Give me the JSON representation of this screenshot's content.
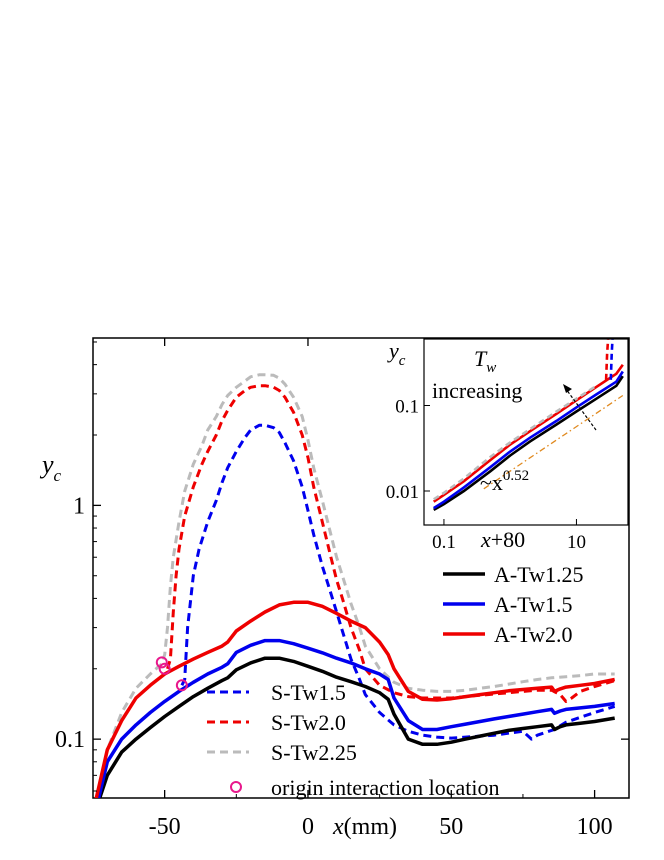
{
  "chart_data": [
    {
      "type": "line",
      "role": "main",
      "xlabel": "x(mm)",
      "ylabel": "y",
      "ylabel_sub": "c",
      "xlim": [
        -75,
        112
      ],
      "ylim": [
        0.056,
        5.2
      ],
      "yscale": "log",
      "grid": false,
      "legend_position": "right / bottom-left",
      "x_ticks": [
        {
          "value": -50,
          "label": "-50"
        },
        {
          "value": 0,
          "label": "0"
        },
        {
          "value": 50,
          "label": "50"
        },
        {
          "value": 100,
          "label": "100"
        }
      ],
      "y_ticks": [
        {
          "value": 0.1,
          "label": "0.1"
        },
        {
          "value": 1,
          "label": "1"
        }
      ],
      "series": [
        {
          "name": "A-Tw1.25",
          "color": "#000000",
          "dash": "solid",
          "x": [
            -74,
            -70,
            -65,
            -60,
            -55,
            -50,
            -45,
            -40,
            -35,
            -30,
            -28,
            -25,
            -20,
            -15,
            -10,
            -5,
            0,
            5,
            10,
            15,
            20,
            25,
            28,
            30,
            35,
            40,
            45,
            50,
            55,
            60,
            65,
            70,
            75,
            80,
            85,
            86,
            88,
            90,
            95,
            100,
            107
          ],
          "y": [
            0.05,
            0.07,
            0.088,
            0.1,
            0.112,
            0.125,
            0.138,
            0.152,
            0.165,
            0.178,
            0.183,
            0.198,
            0.212,
            0.222,
            0.222,
            0.215,
            0.205,
            0.195,
            0.184,
            0.176,
            0.168,
            0.158,
            0.148,
            0.128,
            0.1,
            0.095,
            0.095,
            0.097,
            0.1,
            0.103,
            0.106,
            0.109,
            0.111,
            0.113,
            0.115,
            0.11,
            0.113,
            0.115,
            0.117,
            0.119,
            0.123
          ]
        },
        {
          "name": "A-Tw1.5",
          "color": "#0000ee",
          "dash": "solid",
          "x": [
            -74,
            -70,
            -65,
            -60,
            -55,
            -50,
            -45,
            -40,
            -35,
            -30,
            -28,
            -25,
            -20,
            -15,
            -10,
            -5,
            0,
            5,
            10,
            15,
            20,
            25,
            28,
            30,
            35,
            40,
            45,
            50,
            55,
            60,
            65,
            70,
            75,
            80,
            85,
            86,
            88,
            90,
            95,
            100,
            107
          ],
          "y": [
            0.05,
            0.08,
            0.1,
            0.115,
            0.13,
            0.145,
            0.16,
            0.175,
            0.19,
            0.203,
            0.21,
            0.235,
            0.252,
            0.264,
            0.264,
            0.256,
            0.245,
            0.234,
            0.222,
            0.212,
            0.2,
            0.19,
            0.18,
            0.15,
            0.12,
            0.11,
            0.11,
            0.113,
            0.116,
            0.119,
            0.122,
            0.125,
            0.128,
            0.131,
            0.134,
            0.129,
            0.132,
            0.134,
            0.136,
            0.138,
            0.142
          ]
        },
        {
          "name": "A-Tw2.0",
          "color": "#ee0000",
          "dash": "solid",
          "x": [
            -74,
            -70,
            -65,
            -60,
            -55,
            -50,
            -45,
            -40,
            -35,
            -30,
            -28,
            -25,
            -20,
            -15,
            -10,
            -5,
            0,
            5,
            10,
            15,
            20,
            25,
            28,
            30,
            35,
            40,
            45,
            50,
            55,
            60,
            65,
            70,
            75,
            80,
            85,
            86,
            88,
            90,
            95,
            100,
            107
          ],
          "y": [
            0.055,
            0.09,
            0.12,
            0.15,
            0.17,
            0.19,
            0.205,
            0.22,
            0.235,
            0.25,
            0.26,
            0.29,
            0.32,
            0.35,
            0.375,
            0.385,
            0.385,
            0.37,
            0.345,
            0.32,
            0.3,
            0.26,
            0.23,
            0.2,
            0.16,
            0.148,
            0.147,
            0.149,
            0.152,
            0.155,
            0.158,
            0.161,
            0.163,
            0.165,
            0.167,
            0.16,
            0.164,
            0.167,
            0.17,
            0.173,
            0.18
          ]
        },
        {
          "name": "S-Tw1.5",
          "color": "#0000ee",
          "dash": "dashed",
          "x": [
            -44,
            -43,
            -42,
            -40,
            -38,
            -35,
            -32,
            -30,
            -28,
            -25,
            -22,
            -20,
            -17,
            -15,
            -12,
            -10,
            -8,
            -5,
            -2,
            0,
            2,
            5,
            8,
            10,
            12,
            15,
            18,
            20,
            25,
            30,
            35,
            40,
            45,
            50,
            55,
            60,
            65,
            70,
            75,
            78,
            80,
            84,
            86,
            88,
            90,
            95,
            100,
            107
          ],
          "y": [
            0.17,
            0.18,
            0.3,
            0.5,
            0.65,
            0.85,
            1.05,
            1.25,
            1.45,
            1.7,
            1.95,
            2.1,
            2.2,
            2.2,
            2.15,
            2.05,
            1.85,
            1.55,
            1.2,
            0.95,
            0.75,
            0.55,
            0.42,
            0.35,
            0.29,
            0.22,
            0.18,
            0.155,
            0.13,
            0.115,
            0.108,
            0.104,
            0.102,
            0.101,
            0.102,
            0.103,
            0.104,
            0.106,
            0.108,
            0.1,
            0.104,
            0.108,
            0.11,
            0.114,
            0.118,
            0.124,
            0.13,
            0.138
          ]
        },
        {
          "name": "S-Tw2.0",
          "color": "#ee0000",
          "dash": "dashed",
          "x": [
            -49,
            -48,
            -47,
            -46,
            -45,
            -43,
            -40,
            -37,
            -35,
            -32,
            -30,
            -28,
            -25,
            -22,
            -20,
            -17,
            -15,
            -12,
            -10,
            -8,
            -5,
            -2,
            0,
            2,
            5,
            8,
            10,
            12,
            15,
            18,
            20,
            25,
            30,
            35,
            40,
            45,
            50,
            55,
            60,
            65,
            70,
            75,
            80,
            85,
            88,
            90,
            92,
            95,
            100,
            107
          ],
          "y": [
            0.2,
            0.22,
            0.35,
            0.5,
            0.65,
            0.9,
            1.2,
            1.5,
            1.7,
            2.0,
            2.3,
            2.55,
            2.9,
            3.1,
            3.2,
            3.25,
            3.25,
            3.2,
            3.1,
            2.9,
            2.5,
            2.0,
            1.6,
            1.2,
            0.85,
            0.6,
            0.48,
            0.4,
            0.3,
            0.24,
            0.2,
            0.17,
            0.158,
            0.152,
            0.15,
            0.15,
            0.15,
            0.152,
            0.154,
            0.156,
            0.158,
            0.16,
            0.162,
            0.162,
            0.155,
            0.145,
            0.15,
            0.16,
            0.168,
            0.178
          ]
        },
        {
          "name": "S-Tw2.25",
          "color": "#bbbbbb",
          "dash": "dashed",
          "x": [
            -74,
            -70,
            -65,
            -60,
            -55,
            -52,
            -51,
            -50,
            -49,
            -48,
            -47,
            -45,
            -43,
            -40,
            -37,
            -35,
            -32,
            -30,
            -28,
            -25,
            -22,
            -20,
            -17,
            -15,
            -12,
            -10,
            -8,
            -5,
            -2,
            0,
            2,
            5,
            8,
            10,
            12,
            15,
            18,
            20,
            25,
            30,
            35,
            40,
            45,
            50,
            55,
            60,
            65,
            70,
            75,
            80,
            85,
            90,
            95,
            100,
            107
          ],
          "y": [
            0.05,
            0.09,
            0.13,
            0.165,
            0.19,
            0.205,
            0.21,
            0.23,
            0.3,
            0.45,
            0.6,
            0.85,
            1.15,
            1.5,
            1.8,
            2.1,
            2.4,
            2.7,
            2.95,
            3.2,
            3.4,
            3.55,
            3.62,
            3.62,
            3.6,
            3.5,
            3.3,
            2.9,
            2.4,
            1.9,
            1.45,
            1.05,
            0.75,
            0.6,
            0.5,
            0.38,
            0.3,
            0.25,
            0.2,
            0.175,
            0.165,
            0.162,
            0.16,
            0.16,
            0.162,
            0.165,
            0.168,
            0.172,
            0.176,
            0.18,
            0.183,
            0.185,
            0.187,
            0.19,
            0.19
          ]
        }
      ],
      "markers": {
        "name": "origin interaction location",
        "color": "#e8188c",
        "points": [
          {
            "x": -51,
            "y": 0.213
          },
          {
            "x": -50,
            "y": 0.2
          },
          {
            "x": -44,
            "y": 0.17
          }
        ]
      },
      "legend_right": [
        "A-Tw1.25",
        "A-Tw1.5",
        "A-Tw2.0"
      ],
      "legend_left": [
        "S-Tw1.5",
        "S-Tw2.0",
        "S-Tw2.25",
        "origin interaction location"
      ]
    },
    {
      "type": "line",
      "role": "inset",
      "xlabel": "x+80",
      "ylabel": "y",
      "ylabel_sub": "c",
      "xscale": "log",
      "yscale": "log",
      "xlim": [
        0.05,
        60
      ],
      "ylim": [
        0.004,
        0.6
      ],
      "x_ticks": [
        {
          "value": 0.1,
          "label": "0.1"
        },
        {
          "value": 10,
          "label": "10"
        }
      ],
      "y_ticks": [
        {
          "value": 0.01,
          "label": "0.01"
        },
        {
          "value": 0.1,
          "label": "0.1"
        }
      ],
      "annotations": {
        "tw_label": "T",
        "tw_sub": "w",
        "increasing": "increasing",
        "power_law": "~x",
        "power_exp": "0.52"
      },
      "series": [
        {
          "name": "A-Tw1.25",
          "color": "#000000",
          "x": [
            0.07,
            0.1,
            0.2,
            0.5,
            1,
            2,
            5,
            10,
            20,
            40,
            50
          ],
          "y": [
            0.006,
            0.007,
            0.01,
            0.017,
            0.026,
            0.038,
            0.06,
            0.085,
            0.12,
            0.17,
            0.22
          ]
        },
        {
          "name": "A-Tw1.5",
          "color": "#0000ee",
          "x": [
            0.07,
            0.1,
            0.2,
            0.5,
            1,
            2,
            5,
            10,
            20,
            40,
            50
          ],
          "y": [
            0.0063,
            0.0075,
            0.011,
            0.019,
            0.029,
            0.042,
            0.066,
            0.095,
            0.135,
            0.19,
            0.25
          ]
        },
        {
          "name": "A-Tw2.0",
          "color": "#ee0000",
          "x": [
            0.07,
            0.1,
            0.2,
            0.5,
            1,
            2,
            5,
            10,
            20,
            40,
            50
          ],
          "y": [
            0.0075,
            0.009,
            0.013,
            0.023,
            0.035,
            0.05,
            0.08,
            0.115,
            0.165,
            0.235,
            0.3
          ]
        },
        {
          "name": "S-Tw1.5",
          "color": "#0000ee",
          "dash": "dashed",
          "x": [
            33,
            34,
            35
          ],
          "y": [
            0.2,
            0.4,
            0.6
          ]
        },
        {
          "name": "S-Tw2.0",
          "color": "#ee0000",
          "dash": "dashed",
          "x": [
            28,
            29,
            30
          ],
          "y": [
            0.2,
            0.4,
            0.6
          ]
        },
        {
          "name": "S-Tw2.25",
          "color": "#bbbbbb",
          "dash": "dashed",
          "x": [
            0.07,
            0.1,
            0.2,
            0.5,
            1,
            2,
            5,
            10,
            20
          ],
          "y": [
            0.008,
            0.0095,
            0.014,
            0.025,
            0.037,
            0.053,
            0.085,
            0.12,
            0.17
          ]
        },
        {
          "name": "power law",
          "color": "#e08a20",
          "dash": "dashdot",
          "x": [
            0.4,
            50
          ],
          "y": [
            0.0106,
            0.131
          ]
        }
      ]
    }
  ]
}
